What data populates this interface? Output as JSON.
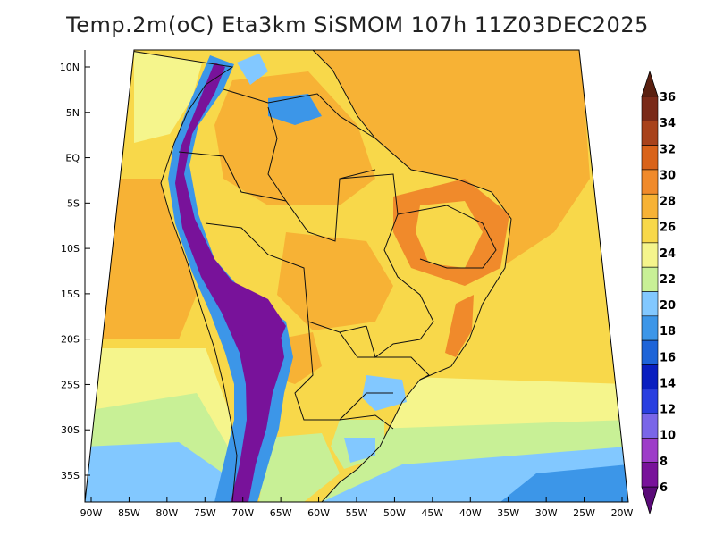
{
  "title": "Temp.2m(oC) Eta3km SiSMOM 107h 11Z03DEC2025",
  "lat_labels": [
    "10N",
    "5N",
    "EQ",
    "5S",
    "10S",
    "15S",
    "20S",
    "25S",
    "30S",
    "35S"
  ],
  "lat_values": [
    10,
    5,
    0,
    -5,
    -10,
    -15,
    -20,
    -25,
    -30,
    -35
  ],
  "lon_labels": [
    "90W",
    "85W",
    "80W",
    "75W",
    "70W",
    "65W",
    "60W",
    "55W",
    "50W",
    "45W",
    "40W",
    "35W",
    "30W",
    "25W",
    "20W"
  ],
  "lon_values": [
    -90,
    -85,
    -80,
    -75,
    -70,
    -65,
    -60,
    -55,
    -50,
    -45,
    -40,
    -35,
    -30,
    -25,
    -20
  ],
  "colorbar": {
    "labels": [
      "6",
      "8",
      "10",
      "12",
      "14",
      "16",
      "18",
      "20",
      "22",
      "24",
      "26",
      "28",
      "30",
      "32",
      "34",
      "36"
    ],
    "colors": [
      "#78129a",
      "#9d3cc8",
      "#7a66e8",
      "#2a3fe0",
      "#0a1fc0",
      "#1e64d8",
      "#3c96e8",
      "#82c8ff",
      "#c8f096",
      "#f5f58c",
      "#f8d84a",
      "#f7b235",
      "#f08a2b",
      "#d9631a",
      "#a8421b",
      "#7a2a18"
    ],
    "min_color": "#5a0a78",
    "max_color": "#5a2010"
  },
  "colors": {
    "ocean_warm": "#f7b235",
    "ocean_mild": "#f8d84a",
    "ocean_cool": "#f5f58c",
    "land_base": "#f8d84a",
    "andes_high": "#78129a",
    "andes_mid": "#3c96e8",
    "south_cool": "#82c8ff",
    "hot_spot": "#f08a2b"
  }
}
